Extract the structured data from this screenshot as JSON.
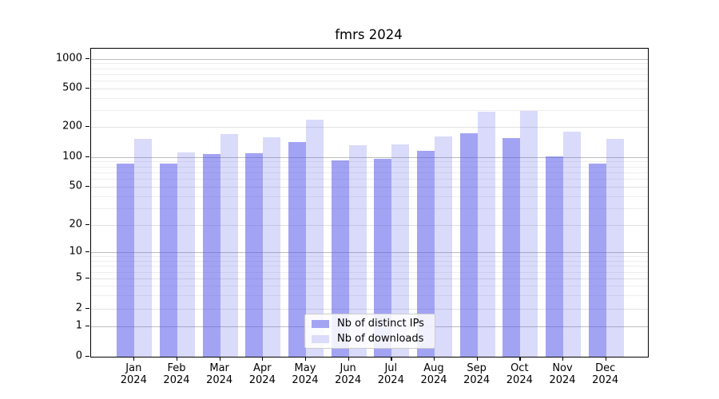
{
  "title": "fmrs 2024",
  "legend": {
    "items": [
      {
        "label": "Nb of distinct IPs",
        "color": "#a4a4f4"
      },
      {
        "label": "Nb of downloads",
        "color": "#dbdbfa"
      }
    ]
  },
  "axes": {
    "y_tick_labels": [
      "0",
      "1",
      "2",
      "5",
      "10",
      "20",
      "50",
      "100",
      "200",
      "500",
      "1000"
    ],
    "x_tick_year": "2024"
  },
  "chart_data": {
    "type": "bar",
    "title": "fmrs 2024",
    "categories": [
      "Jan",
      "Feb",
      "Mar",
      "Apr",
      "May",
      "Jun",
      "Jul",
      "Aug",
      "Sep",
      "Oct",
      "Nov",
      "Dec"
    ],
    "x_year": "2024",
    "series": [
      {
        "name": "Nb of distinct IPs",
        "color": "#a4a4f4",
        "values": [
          86,
          85,
          107,
          109,
          141,
          93,
          95,
          115,
          175,
          155,
          102,
          86
        ]
      },
      {
        "name": "Nb of downloads",
        "color": "#dbdbfa",
        "values": [
          153,
          111,
          171,
          157,
          237,
          132,
          134,
          160,
          289,
          295,
          181,
          151
        ]
      }
    ],
    "xlabel": "",
    "ylabel": "",
    "yscale": "symlog",
    "yticks": [
      0,
      1,
      2,
      5,
      10,
      20,
      50,
      100,
      200,
      500,
      1000
    ],
    "ylim": [
      0,
      1270
    ],
    "grid": true,
    "grid_decade_color": "#bdbdbd",
    "grid_minor_color": "#eeeeee",
    "legend_position": "lower center"
  }
}
